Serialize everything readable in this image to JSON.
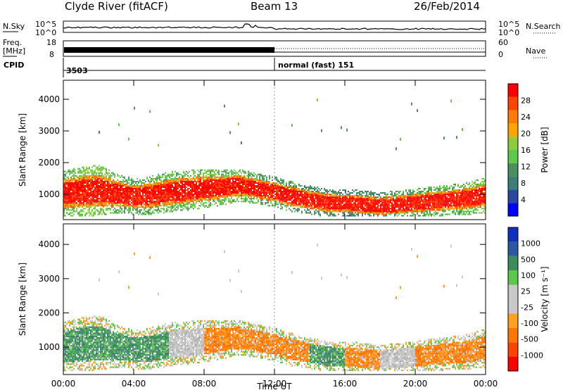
{
  "header": {
    "station": "Clyde River (fitACF)",
    "beam": "Beam 13",
    "date": "26/Feb/2014"
  },
  "top_panels": {
    "nsky_label": "N.Sky",
    "nsearch_label": "N.Search",
    "nsky_ticks": [
      "10^5",
      "10^0"
    ],
    "nsearch_ticks": [
      "10^5",
      "10^0"
    ],
    "freq_label_1": "Freq.",
    "freq_label_2": "[MHz]",
    "freq_ticks": [
      "18",
      "8"
    ],
    "nave_label": "Nave",
    "nave_ticks": [
      "60",
      "0"
    ],
    "cpid_label": "CPID",
    "cpid_1": "3503",
    "cpid_2": "normal (fast) 151",
    "cpid_switch_hour": 12
  },
  "colors": {
    "power_scale": [
      "#0000ff",
      "#2a4aa0",
      "#3c7e73",
      "#4a8f5f",
      "#5cc84a",
      "#8fcc3c",
      "#ffa500",
      "#ff7a00",
      "#ff4500",
      "#ff0000"
    ],
    "velocity_scale": [
      "#ff0000",
      "#ff4400",
      "#ff7700",
      "#ffa020",
      "#c8c8c8",
      "#c8c8c8",
      "#5cc84a",
      "#3c8c5c",
      "#2a5aa0",
      "#1030c0"
    ]
  },
  "chart_data": [
    {
      "type": "heatmap",
      "name": "power",
      "ylabel": "Slant Range [km]",
      "yticks": [
        1000,
        2000,
        3000,
        4000
      ],
      "ylim": [
        200,
        4600
      ],
      "xlim": [
        0,
        24
      ],
      "colorbar_label": "Power [dB]",
      "colorbar_ticks": [
        "4",
        "8",
        "12",
        "16",
        "20",
        "24",
        "28"
      ],
      "colorbar_range": [
        0,
        32
      ],
      "profile": {
        "hours": [
          0,
          1,
          2,
          3,
          4,
          5,
          6,
          7,
          8,
          9,
          10,
          11,
          12,
          13,
          14,
          15,
          16,
          17,
          18,
          19,
          20,
          21,
          22,
          23,
          24
        ],
        "core_center_km": [
          1000,
          1050,
          1100,
          1000,
          900,
          950,
          1050,
          1100,
          1150,
          1200,
          1250,
          1150,
          1050,
          900,
          800,
          700,
          700,
          650,
          600,
          650,
          700,
          750,
          800,
          850,
          950
        ],
        "core_halfwidth_km": [
          450,
          500,
          500,
          400,
          350,
          380,
          400,
          400,
          380,
          350,
          320,
          300,
          300,
          300,
          280,
          280,
          270,
          280,
          270,
          280,
          280,
          300,
          300,
          320,
          350
        ],
        "edge_power_db": [
          14,
          16,
          16,
          14,
          12,
          14,
          14,
          14,
          14,
          14,
          14,
          12,
          12,
          12,
          10,
          10,
          8,
          10,
          10,
          12,
          12,
          14,
          14,
          14,
          16
        ]
      }
    },
    {
      "type": "heatmap",
      "name": "velocity",
      "ylabel": "Slant Range [km]",
      "xlabel": "Time UT",
      "xticks": [
        "00:00",
        "04:00",
        "08:00",
        "12:00",
        "16:00",
        "20:00",
        "00:00"
      ],
      "yticks": [
        1000,
        2000,
        3000,
        4000
      ],
      "ylim": [
        200,
        4600
      ],
      "xlim": [
        0,
        24
      ],
      "colorbar_label": "Velocity [m s⁻¹]",
      "colorbar_ticks": [
        "-1000",
        "-500",
        "-100",
        "-25",
        "25",
        "100",
        "500",
        "1000"
      ],
      "profile": {
        "hours": [
          0,
          2,
          4,
          6,
          8,
          10,
          12,
          14,
          16,
          18,
          20,
          22,
          24
        ],
        "dominant": [
          "green",
          "green",
          "green",
          "gray",
          "orange",
          "orange",
          "orange",
          "green",
          "orange",
          "gray",
          "orange",
          "orange",
          "orange"
        ]
      }
    }
  ]
}
